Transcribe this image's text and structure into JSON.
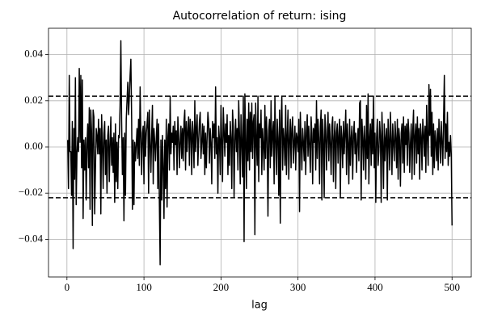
{
  "chart_data": {
    "type": "line",
    "title": "Autocorrelation of return: ising",
    "x_label": "lag",
    "x": [
      1,
      2,
      3,
      4,
      5,
      6,
      7,
      8,
      9,
      10,
      11,
      12,
      13,
      14,
      15,
      16,
      17,
      18,
      19,
      20,
      21,
      22,
      23,
      24,
      25,
      26,
      27,
      28,
      29,
      30,
      31,
      32,
      33,
      34,
      35,
      36,
      37,
      38,
      39,
      40,
      41,
      42,
      43,
      44,
      45,
      46,
      47,
      48,
      49,
      50,
      51,
      52,
      53,
      54,
      55,
      56,
      57,
      58,
      59,
      60,
      61,
      62,
      63,
      64,
      65,
      66,
      67,
      68,
      69,
      70,
      71,
      72,
      73,
      74,
      75,
      76,
      77,
      78,
      79,
      80,
      81,
      82,
      83,
      84,
      85,
      86,
      87,
      88,
      89,
      90,
      91,
      92,
      93,
      94,
      95,
      96,
      97,
      98,
      99,
      100,
      101,
      102,
      103,
      104,
      105,
      106,
      107,
      108,
      109,
      110,
      111,
      112,
      113,
      114,
      115,
      116,
      117,
      118,
      119,
      120,
      121,
      122,
      123,
      124,
      125,
      126,
      127,
      128,
      129,
      130,
      131,
      132,
      133,
      134,
      135,
      136,
      137,
      138,
      139,
      140,
      141,
      142,
      143,
      144,
      145,
      146,
      147,
      148,
      149,
      150,
      151,
      152,
      153,
      154,
      155,
      156,
      157,
      158,
      159,
      160,
      161,
      162,
      163,
      164,
      165,
      166,
      167,
      168,
      169,
      170,
      171,
      172,
      173,
      174,
      175,
      176,
      177,
      178,
      179,
      180,
      181,
      182,
      183,
      184,
      185,
      186,
      187,
      188,
      189,
      190,
      191,
      192,
      193,
      194,
      195,
      196,
      197,
      198,
      199,
      200,
      201,
      202,
      203,
      204,
      205,
      206,
      207,
      208,
      209,
      210,
      211,
      212,
      213,
      214,
      215,
      216,
      217,
      218,
      219,
      220,
      221,
      222,
      223,
      224,
      225,
      226,
      227,
      228,
      229,
      230,
      231,
      232,
      233,
      234,
      235,
      236,
      237,
      238,
      239,
      240,
      241,
      242,
      243,
      244,
      245,
      246,
      247,
      248,
      249,
      250,
      251,
      252,
      253,
      254,
      255,
      256,
      257,
      258,
      259,
      260,
      261,
      262,
      263,
      264,
      265,
      266,
      267,
      268,
      269,
      270,
      271,
      272,
      273,
      274,
      275,
      276,
      277,
      278,
      279,
      280,
      281,
      282,
      283,
      284,
      285,
      286,
      287,
      288,
      289,
      290,
      291,
      292,
      293,
      294,
      295,
      296,
      297,
      298,
      299,
      300,
      301,
      302,
      303,
      304,
      305,
      306,
      307,
      308,
      309,
      310,
      311,
      312,
      313,
      314,
      315,
      316,
      317,
      318,
      319,
      320,
      321,
      322,
      323,
      324,
      325,
      326,
      327,
      328,
      329,
      330,
      331,
      332,
      333,
      334,
      335,
      336,
      337,
      338,
      339,
      340,
      341,
      342,
      343,
      344,
      345,
      346,
      347,
      348,
      349,
      350,
      351,
      352,
      353,
      354,
      355,
      356,
      357,
      358,
      359,
      360,
      361,
      362,
      363,
      364,
      365,
      366,
      367,
      368,
      369,
      370,
      371,
      372,
      373,
      374,
      375,
      376,
      377,
      378,
      379,
      380,
      381,
      382,
      383,
      384,
      385,
      386,
      387,
      388,
      389,
      390,
      391,
      392,
      393,
      394,
      395,
      396,
      397,
      398,
      399,
      400,
      401,
      402,
      403,
      404,
      405,
      406,
      407,
      408,
      409,
      410,
      411,
      412,
      413,
      414,
      415,
      416,
      417,
      418,
      419,
      420,
      421,
      422,
      423,
      424,
      425,
      426,
      427,
      428,
      429,
      430,
      431,
      432,
      433,
      434,
      435,
      436,
      437,
      438,
      439,
      440,
      441,
      442,
      443,
      444,
      445,
      446,
      447,
      448,
      449,
      450,
      451,
      452,
      453,
      454,
      455,
      456,
      457,
      458,
      459,
      460,
      461,
      462,
      463,
      464,
      465,
      466,
      467,
      468,
      469,
      470,
      471,
      472,
      473,
      474,
      475,
      476,
      477,
      478,
      479,
      480,
      481,
      482,
      483,
      484,
      485,
      486,
      487,
      488,
      489,
      490,
      491,
      492,
      493,
      494,
      495,
      496,
      497,
      498,
      499,
      500
    ],
    "series": [
      {
        "color": "#000000",
        "values": [
          0.003,
          -0.018,
          0.031,
          -0.002,
          -0.002,
          -0.021,
          0.011,
          -0.044,
          0.008,
          -0.014,
          0.03,
          -0.025,
          -0.003,
          0.004,
          -0.002,
          0.034,
          0.002,
          0.031,
          -0.009,
          0.029,
          -0.031,
          0.003,
          -0.01,
          0.004,
          -0.023,
          0.001,
          0.01,
          -0.009,
          0.017,
          -0.027,
          0.016,
          0.006,
          -0.034,
          0.016,
          0.013,
          -0.029,
          -0.01,
          0.008,
          0.005,
          -0.003,
          0.012,
          -0.003,
          0.008,
          -0.029,
          0.014,
          0.002,
          -0.018,
          0.006,
          0.011,
          -0.012,
          0.003,
          -0.02,
          0.005,
          0.009,
          -0.015,
          0.001,
          0.013,
          -0.008,
          0.004,
          -0.011,
          0.006,
          -0.024,
          0.01,
          -0.015,
          0.002,
          -0.018,
          0.005,
          0.004,
          0.018,
          0.046,
          0.011,
          -0.012,
          0.004,
          -0.032,
          0.006,
          -0.021,
          0.012,
          0.02,
          0.028,
          0.014,
          0.022,
          0.031,
          0.038,
          0.012,
          -0.027,
          0.003,
          -0.025,
          0.002,
          -0.006,
          0.001,
          0.008,
          -0.005,
          0.012,
          -0.008,
          0.026,
          0.004,
          -0.012,
          0.006,
          0.009,
          -0.016,
          0.011,
          -0.004,
          0.006,
          0.01,
          0.015,
          -0.02,
          0.016,
          0.002,
          -0.011,
          0.005,
          0.018,
          -0.016,
          0.008,
          0.002,
          -0.006,
          0.004,
          0.012,
          -0.018,
          0.01,
          -0.024,
          -0.051,
          0.003,
          -0.023,
          0.005,
          -0.008,
          -0.031,
          0.003,
          -0.018,
          0.012,
          -0.026,
          0.004,
          0.01,
          -0.01,
          0.022,
          -0.003,
          0.006,
          0.002,
          0.009,
          -0.01,
          0.011,
          0.001,
          0.007,
          -0.012,
          0.013,
          0.006,
          -0.009,
          0.002,
          0.009,
          -0.005,
          0.008,
          -0.006,
          0.011,
          0.016,
          -0.01,
          0.011,
          -0.002,
          0.007,
          0.013,
          -0.008,
          0.012,
          0.006,
          -0.012,
          0.011,
          0.005,
          -0.009,
          0.02,
          -0.002,
          0.008,
          0.014,
          -0.008,
          0.003,
          0.011,
          0.015,
          -0.005,
          0.002,
          0.01,
          -0.003,
          0.009,
          -0.012,
          0.006,
          -0.009,
          0.004,
          0.015,
          0.01,
          -0.007,
          0.008,
          0.002,
          -0.016,
          0.011,
          0.004,
          0.01,
          -0.005,
          0.026,
          -0.003,
          0.004,
          -0.02,
          0.009,
          0.003,
          -0.012,
          0.018,
          0.002,
          -0.015,
          0.017,
          0.007,
          -0.004,
          0.01,
          0.002,
          0.014,
          -0.012,
          0.005,
          -0.008,
          0.011,
          0.004,
          -0.018,
          0.016,
          0.009,
          -0.022,
          0.003,
          0.012,
          -0.002,
          0.008,
          -0.01,
          0.02,
          0.006,
          -0.016,
          0.014,
          0.002,
          -0.013,
          0.022,
          -0.041,
          0.023,
          0.004,
          -0.018,
          0.012,
          -0.006,
          0.019,
          -0.01,
          0.015,
          -0.002,
          0.019,
          -0.005,
          0.011,
          0.014,
          -0.038,
          0.019,
          0.003,
          -0.008,
          0.022,
          -0.015,
          0.01,
          0.004,
          0.016,
          -0.012,
          0.008,
          0.001,
          -0.01,
          0.018,
          -0.005,
          0.013,
          0.004,
          -0.03,
          0.007,
          0.012,
          -0.009,
          0.02,
          -0.004,
          0.006,
          0.011,
          -0.016,
          0.022,
          0.003,
          -0.012,
          0.012,
          0.004,
          -0.021,
          0.016,
          -0.033,
          0.01,
          0.022,
          -0.01,
          0.008,
          0.003,
          -0.008,
          0.018,
          -0.012,
          0.005,
          0.016,
          -0.014,
          0.003,
          0.012,
          -0.009,
          0.008,
          0.013,
          -0.007,
          0.002,
          0.009,
          -0.01,
          0.006,
          0.004,
          -0.002,
          0.012,
          -0.028,
          0.015,
          0.003,
          -0.01,
          0.008,
          0.002,
          -0.006,
          0.011,
          -0.012,
          0.006,
          0.014,
          -0.004,
          0.009,
          0.001,
          -0.011,
          0.013,
          0.006,
          -0.016,
          0.008,
          0.002,
          0.01,
          -0.01,
          0.02,
          -0.005,
          0.012,
          0.004,
          -0.016,
          0.009,
          0.016,
          -0.023,
          0.012,
          0.003,
          -0.022,
          0.014,
          0.007,
          -0.01,
          0.005,
          0.015,
          -0.006,
          0.01,
          0.002,
          -0.012,
          0.009,
          0.013,
          -0.015,
          0.004,
          0.011,
          -0.018,
          0.006,
          0.01,
          -0.007,
          0.005,
          0.012,
          -0.022,
          0.009,
          0.004,
          -0.009,
          0.011,
          -0.003,
          0.006,
          0.016,
          -0.012,
          0.01,
          0.002,
          -0.016,
          0.012,
          -0.008,
          0.004,
          0.009,
          -0.014,
          0.005,
          0.011,
          -0.003,
          0.006,
          -0.011,
          0.002,
          0.008,
          -0.006,
          0.019,
          0.02,
          -0.023,
          0.012,
          0.004,
          -0.01,
          0.009,
          0.002,
          -0.014,
          0.018,
          -0.005,
          0.023,
          -0.016,
          0.004,
          0.01,
          -0.008,
          0.012,
          -0.003,
          0.022,
          -0.009,
          0.006,
          -0.024,
          0.004,
          0.012,
          -0.008,
          -0.002,
          0.011,
          0.005,
          -0.024,
          0.015,
          0.002,
          -0.018,
          0.01,
          -0.006,
          0.004,
          0.008,
          -0.023,
          0.012,
          0.003,
          -0.01,
          0.015,
          0.004,
          -0.012,
          0.01,
          0.002,
          -0.006,
          0.011,
          0.004,
          -0.009,
          0.012,
          -0.014,
          0.008,
          0.003,
          -0.017,
          0.006,
          0.01,
          -0.007,
          0.013,
          -0.011,
          0.009,
          0.001,
          0.01,
          -0.008,
          0.012,
          0.006,
          -0.011,
          0.002,
          0.01,
          -0.014,
          0.007,
          0.016,
          -0.012,
          0.005,
          0.01,
          -0.007,
          0.013,
          -0.003,
          0.008,
          -0.014,
          0.01,
          0.005,
          -0.01,
          0.012,
          0.006,
          -0.004,
          0.009,
          -0.011,
          0.018,
          0.004,
          -0.008,
          0.027,
          0.005,
          0.025,
          -0.004,
          0.015,
          -0.012,
          0.01,
          -0.009,
          0.007,
          0.002,
          -0.006,
          0.008,
          -0.01,
          0.012,
          0.004,
          -0.007,
          0.011,
          0.002,
          -0.008,
          0.012,
          0.031,
          -0.005,
          0.01,
          -0.002,
          0.015,
          -0.008,
          0.002,
          -0.004,
          0.005,
          -0.003,
          -0.034
        ]
      }
    ],
    "hlines": [
      0.022,
      -0.022
    ],
    "xlim": [
      -23.95,
      524.95
    ],
    "xticks": [
      0,
      100,
      200,
      300,
      400,
      500
    ],
    "ylim": [
      -0.0563,
      0.0514
    ],
    "yticks": [
      {
        "value": -0.04,
        "label": "−0.04"
      },
      {
        "value": -0.02,
        "label": "−0.02"
      },
      {
        "value": 0,
        "label": "0.00"
      },
      0.02,
      0.04
    ],
    "grid": true
  }
}
